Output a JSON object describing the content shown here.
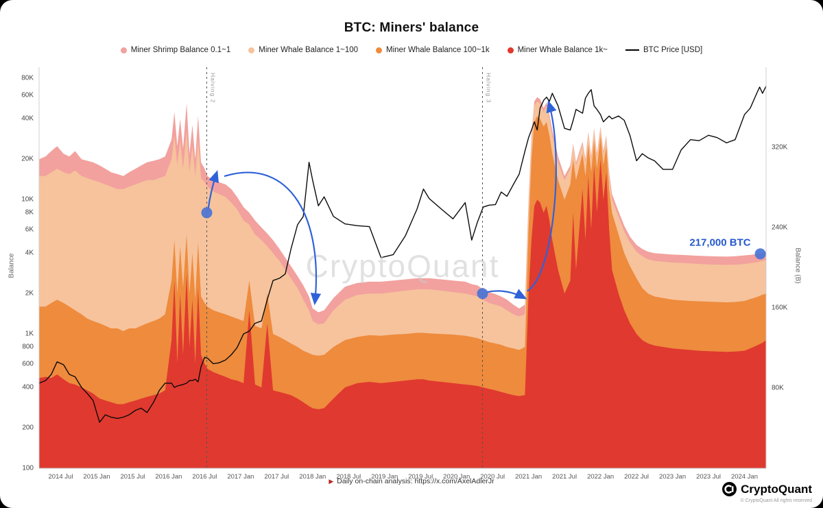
{
  "title": "BTC: Miners' balance",
  "watermark": "CryptoQuant",
  "legend": {
    "items": [
      {
        "label": "Miner Shrimp Balance 0.1~1",
        "color": "#f2a19e",
        "swatch": "dot"
      },
      {
        "label": "Miner Whale Balance 1~100",
        "color": "#f6c39c",
        "swatch": "dot"
      },
      {
        "label": "Miner Whale Balance 100~1k",
        "color": "#ee8b3d",
        "swatch": "dot"
      },
      {
        "label": "Miner Whale Balance 1k~",
        "color": "#e0392f",
        "swatch": "dot"
      },
      {
        "label": "BTC Price [USD]",
        "color": "#000000",
        "swatch": "line"
      }
    ]
  },
  "axes": {
    "y_left": {
      "title": "Balance",
      "scale": "log",
      "domain": [
        100,
        97000
      ],
      "ticks": [
        {
          "label": "80K",
          "value": 80000
        },
        {
          "label": "60K",
          "value": 60000
        },
        {
          "label": "40K",
          "value": 40000
        },
        {
          "label": "20K",
          "value": 20000
        },
        {
          "label": "10K",
          "value": 10000
        },
        {
          "label": "8K",
          "value": 8000
        },
        {
          "label": "6K",
          "value": 6000
        },
        {
          "label": "4K",
          "value": 4000
        },
        {
          "label": "2K",
          "value": 2000
        },
        {
          "label": "1K",
          "value": 1000
        },
        {
          "label": "800",
          "value": 800
        },
        {
          "label": "600",
          "value": 600
        },
        {
          "label": "400",
          "value": 400
        },
        {
          "label": "200",
          "value": 200
        },
        {
          "label": "100",
          "value": 100
        }
      ]
    },
    "y_right": {
      "title": "Balance (B)",
      "scale": "linear",
      "domain": [
        0,
        400000
      ],
      "ticks": [
        {
          "label": "320K",
          "value": 320000
        },
        {
          "label": "240K",
          "value": 240000
        },
        {
          "label": "160K",
          "value": 160000
        },
        {
          "label": "80K",
          "value": 80000
        }
      ]
    },
    "x": {
      "ticks": [
        {
          "label": "2014 Jul",
          "t": 2014.5
        },
        {
          "label": "2015 Jan",
          "t": 2015.0
        },
        {
          "label": "2015 Jul",
          "t": 2015.5
        },
        {
          "label": "2016 Jan",
          "t": 2016.0
        },
        {
          "label": "2016 Jul",
          "t": 2016.5
        },
        {
          "label": "2017 Jan",
          "t": 2017.0
        },
        {
          "label": "2017 Jul",
          "t": 2017.5
        },
        {
          "label": "2018 Jan",
          "t": 2018.0
        },
        {
          "label": "2018 Jul",
          "t": 2018.5
        },
        {
          "label": "2019 Jan",
          "t": 2019.0
        },
        {
          "label": "2019 Jul",
          "t": 2019.5
        },
        {
          "label": "2020 Jan",
          "t": 2020.0
        },
        {
          "label": "2020 Jul",
          "t": 2020.5
        },
        {
          "label": "2021 Jan",
          "t": 2021.0
        },
        {
          "label": "2021 Jul",
          "t": 2021.5
        },
        {
          "label": "2022 Jan",
          "t": 2022.0
        },
        {
          "label": "2022 Jul",
          "t": 2022.5
        },
        {
          "label": "2023 Jan",
          "t": 2023.0
        },
        {
          "label": "2023 Jul",
          "t": 2023.5
        },
        {
          "label": "2024 Jan",
          "t": 2024.0
        }
      ]
    }
  },
  "chart_data": {
    "type": "area",
    "title": "BTC: Miners' balance",
    "ylabel": "Balance",
    "y_scale": "log",
    "y_domain": [
      100,
      97000
    ],
    "x_domain": [
      2014.2,
      2024.3
    ],
    "stacking": "values are cumulative stack tops (BTC), stacked red->orange->peach->pink",
    "x_years": [
      2014.2,
      2014.29,
      2014.37,
      2014.45,
      2014.54,
      2014.62,
      2014.7,
      2014.79,
      2014.87,
      2014.95,
      2015.04,
      2015.12,
      2015.2,
      2015.29,
      2015.37,
      2015.45,
      2015.54,
      2015.62,
      2015.7,
      2015.79,
      2015.87,
      2015.95,
      2016.04,
      2016.08,
      2016.12,
      2016.16,
      2016.2,
      2016.25,
      2016.29,
      2016.33,
      2016.37,
      2016.41,
      2016.45,
      2016.5,
      2016.54,
      2016.62,
      2016.7,
      2016.79,
      2016.87,
      2016.95,
      2017.04,
      2017.12,
      2017.2,
      2017.29,
      2017.37,
      2017.45,
      2017.54,
      2017.62,
      2017.7,
      2017.79,
      2017.87,
      2017.95,
      2018.0,
      2018.08,
      2018.16,
      2018.29,
      2018.45,
      2018.62,
      2018.79,
      2018.95,
      2019.12,
      2019.29,
      2019.45,
      2019.54,
      2019.62,
      2019.79,
      2019.95,
      2020.12,
      2020.21,
      2020.29,
      2020.37,
      2020.45,
      2020.54,
      2020.62,
      2020.7,
      2020.79,
      2020.87,
      2020.95,
      2021.0,
      2021.04,
      2021.08,
      2021.12,
      2021.16,
      2021.21,
      2021.25,
      2021.29,
      2021.33,
      2021.41,
      2021.5,
      2021.58,
      2021.62,
      2021.66,
      2021.75,
      2021.79,
      2021.83,
      2021.87,
      2021.91,
      2021.95,
      2022.0,
      2022.04,
      2022.08,
      2022.12,
      2022.16,
      2022.25,
      2022.33,
      2022.41,
      2022.5,
      2022.58,
      2022.66,
      2022.75,
      2022.87,
      2023.0,
      2023.12,
      2023.25,
      2023.37,
      2023.5,
      2023.62,
      2023.75,
      2023.87,
      2024.0,
      2024.08,
      2024.17,
      2024.21,
      2024.25,
      2024.3
    ],
    "series": [
      {
        "name": "Miner Whale Balance 1k~",
        "color": "#e0392f",
        "cumulative_top": [
          470,
          480,
          470,
          500,
          460,
          430,
          420,
          400,
          380,
          360,
          330,
          320,
          310,
          300,
          300,
          310,
          320,
          330,
          340,
          350,
          360,
          380,
          900,
          2500,
          600,
          2000,
          700,
          2800,
          800,
          1800,
          600,
          2200,
          700,
          600,
          550,
          520,
          500,
          480,
          460,
          450,
          430,
          1500,
          420,
          400,
          1200,
          380,
          370,
          360,
          350,
          330,
          310,
          290,
          280,
          275,
          280,
          330,
          400,
          430,
          440,
          430,
          440,
          450,
          460,
          460,
          450,
          440,
          430,
          420,
          415,
          410,
          400,
          390,
          380,
          370,
          360,
          350,
          345,
          350,
          2000,
          5000,
          9000,
          10000,
          9500,
          8000,
          9000,
          7000,
          5000,
          3000,
          2000,
          2500,
          8000,
          3000,
          12000,
          5000,
          15000,
          6000,
          18000,
          8000,
          20000,
          10000,
          16000,
          6000,
          3000,
          2000,
          1500,
          1200,
          1000,
          900,
          850,
          820,
          800,
          780,
          770,
          760,
          750,
          745,
          740,
          735,
          740,
          750,
          780,
          820,
          840,
          860,
          900
        ]
      },
      {
        "name": "Miner Whale Balance 100~1k",
        "color": "#ee8b3d",
        "cumulative_top": [
          1600,
          1600,
          1700,
          1800,
          1700,
          1600,
          1500,
          1400,
          1300,
          1250,
          1200,
          1150,
          1100,
          1100,
          1050,
          1100,
          1100,
          1150,
          1200,
          1250,
          1300,
          1400,
          2500,
          5000,
          2000,
          4500,
          2200,
          5500,
          2000,
          4000,
          1800,
          4800,
          1900,
          1700,
          1600,
          1500,
          1450,
          1400,
          1350,
          1300,
          1250,
          2500,
          1150,
          1100,
          2000,
          1000,
          950,
          900,
          850,
          800,
          750,
          720,
          700,
          690,
          700,
          800,
          900,
          950,
          980,
          970,
          990,
          1000,
          1020,
          1020,
          1010,
          1000,
          990,
          970,
          950,
          930,
          900,
          870,
          850,
          830,
          800,
          780,
          760,
          800,
          6000,
          20000,
          38000,
          42000,
          40000,
          35000,
          38000,
          30000,
          22000,
          14000,
          10000,
          13000,
          20000,
          14000,
          22000,
          15000,
          26000,
          16000,
          28000,
          17000,
          30000,
          18000,
          25000,
          12000,
          8000,
          5500,
          4000,
          3200,
          2600,
          2200,
          2000,
          1900,
          1850,
          1800,
          1780,
          1760,
          1750,
          1740,
          1730,
          1720,
          1730,
          1760,
          1820,
          1880,
          1920,
          1960,
          2000
        ]
      },
      {
        "name": "Miner Whale Balance 1~100",
        "color": "#f6c39c",
        "cumulative_top": [
          15000,
          15000,
          16000,
          17000,
          16000,
          15500,
          16500,
          15000,
          14500,
          14000,
          13500,
          13000,
          12500,
          12000,
          12000,
          12500,
          13000,
          13500,
          14000,
          14000,
          14500,
          15000,
          20000,
          30000,
          18000,
          28000,
          17000,
          32000,
          16000,
          25000,
          15000,
          28000,
          14500,
          13500,
          12500,
          11500,
          11000,
          10500,
          9500,
          8500,
          7000,
          6500,
          5500,
          5000,
          4500,
          4000,
          3500,
          3000,
          2600,
          2200,
          1800,
          1500,
          1250,
          1180,
          1200,
          1500,
          1800,
          1950,
          2000,
          2000,
          2050,
          2100,
          2150,
          2150,
          2150,
          2100,
          2050,
          2000,
          1950,
          1900,
          1800,
          1700,
          1650,
          1600,
          1500,
          1400,
          1350,
          1400,
          9000,
          28000,
          50000,
          54000,
          52000,
          45000,
          50000,
          40000,
          30000,
          19000,
          14000,
          17000,
          25000,
          18000,
          26000,
          19000,
          31000,
          20000,
          33000,
          21000,
          34000,
          22000,
          29000,
          15000,
          10000,
          7500,
          5800,
          4800,
          4100,
          3800,
          3600,
          3500,
          3450,
          3400,
          3380,
          3350,
          3320,
          3300,
          3280,
          3270,
          3280,
          3320,
          3360,
          3420,
          3460,
          3500,
          3560
        ]
      },
      {
        "name": "Miner Shrimp Balance 0.1~1",
        "color": "#f2a19e",
        "cumulative_top": [
          20000,
          21000,
          23000,
          25000,
          22000,
          21000,
          23000,
          20000,
          19500,
          19000,
          18000,
          17000,
          16000,
          15500,
          15000,
          16000,
          17000,
          18000,
          19000,
          19500,
          20000,
          21000,
          28000,
          45000,
          25000,
          40000,
          24000,
          52000,
          22000,
          36000,
          20000,
          42000,
          19000,
          17000,
          15000,
          14000,
          13500,
          13000,
          12000,
          10500,
          8800,
          8000,
          7000,
          6200,
          5600,
          5000,
          4300,
          3700,
          3200,
          2700,
          2300,
          1900,
          1550,
          1450,
          1500,
          1850,
          2250,
          2400,
          2450,
          2450,
          2500,
          2550,
          2600,
          2600,
          2600,
          2550,
          2500,
          2450,
          2350,
          2300,
          2150,
          2050,
          1980,
          1900,
          1800,
          1650,
          1550,
          1650,
          10000,
          30000,
          54000,
          58000,
          56000,
          48000,
          53000,
          43000,
          33000,
          21000,
          15000,
          18000,
          26000,
          19000,
          27000,
          20000,
          32000,
          21000,
          34000,
          22000,
          35000,
          23000,
          30000,
          16000,
          11000,
          8200,
          6400,
          5300,
          4600,
          4300,
          4100,
          4000,
          3950,
          3900,
          3880,
          3850,
          3820,
          3800,
          3780,
          3770,
          3790,
          3850,
          3880,
          3940,
          3980,
          4020,
          4100
        ]
      }
    ],
    "price_line": {
      "name": "BTC Price [USD]",
      "color": "#0a0a0a",
      "values": [
        430,
        450,
        500,
        620,
        590,
        500,
        480,
        400,
        360,
        320,
        220,
        250,
        240,
        235,
        240,
        250,
        270,
        280,
        260,
        310,
        380,
        430,
        430,
        400,
        410,
        415,
        420,
        430,
        450,
        450,
        460,
        440,
        570,
        670,
        660,
        600,
        610,
        640,
        700,
        790,
        1000,
        1050,
        1200,
        1250,
        1800,
        2500,
        2600,
        2800,
        4300,
        6500,
        7500,
        19000,
        14000,
        9000,
        10500,
        7500,
        6600,
        6400,
        6300,
        3700,
        3900,
        5400,
        8500,
        12000,
        10200,
        8500,
        7200,
        9500,
        5000,
        6800,
        8800,
        9100,
        9200,
        11400,
        10600,
        13000,
        15500,
        23000,
        29000,
        33000,
        38000,
        33000,
        48000,
        55000,
        58000,
        54000,
        62000,
        50000,
        34000,
        33000,
        39000,
        47000,
        44000,
        57000,
        62000,
        66000,
        50000,
        47000,
        43000,
        38000,
        40000,
        42000,
        40000,
        42000,
        39000,
        30000,
        19500,
        22000,
        20500,
        19500,
        16800,
        16800,
        23500,
        28000,
        27500,
        30200,
        29000,
        26500,
        28000,
        43000,
        48000,
        62000,
        69000,
        62000,
        70000
      ]
    }
  },
  "annotations": {
    "color": "#2f62d8",
    "halvings": [
      {
        "label": "Halving 2",
        "t": 2016.53
      },
      {
        "label": "Halving 3",
        "t": 2020.36
      }
    ],
    "dots": [
      {
        "t": 2016.53,
        "v": 8000
      },
      {
        "t": 2020.36,
        "v": 2000
      },
      {
        "t": 2024.22,
        "v": 3950
      }
    ],
    "balance_label": {
      "text": "217,000 BTC",
      "anchor_dot": 2
    },
    "arrows": [
      {
        "type": "quad",
        "pts": [
          [
            2016.55,
            8500
          ],
          [
            2016.58,
            11500
          ],
          [
            2016.67,
            16000
          ]
        ]
      },
      {
        "type": "cubic",
        "pts": [
          [
            2016.78,
            15000
          ],
          [
            2017.7,
            21000
          ],
          [
            2018.15,
            7000
          ],
          [
            2018.03,
            1700
          ]
        ]
      },
      {
        "type": "quad",
        "pts": [
          [
            2020.42,
            2050
          ],
          [
            2020.68,
            2200
          ],
          [
            2020.95,
            1850
          ]
        ]
      },
      {
        "type": "cubic",
        "pts": [
          [
            2020.99,
            2100
          ],
          [
            2021.35,
            2800
          ],
          [
            2021.5,
            21000
          ],
          [
            2021.28,
            53000
          ]
        ]
      }
    ]
  },
  "footer": {
    "icon": "▶",
    "text": "Daily on-chain analysis: https://x.com/AxelAdlerJr"
  },
  "branding": {
    "logo_text": "CryptoQuant",
    "copyright": "© CryptoQuant All rights reserved"
  }
}
